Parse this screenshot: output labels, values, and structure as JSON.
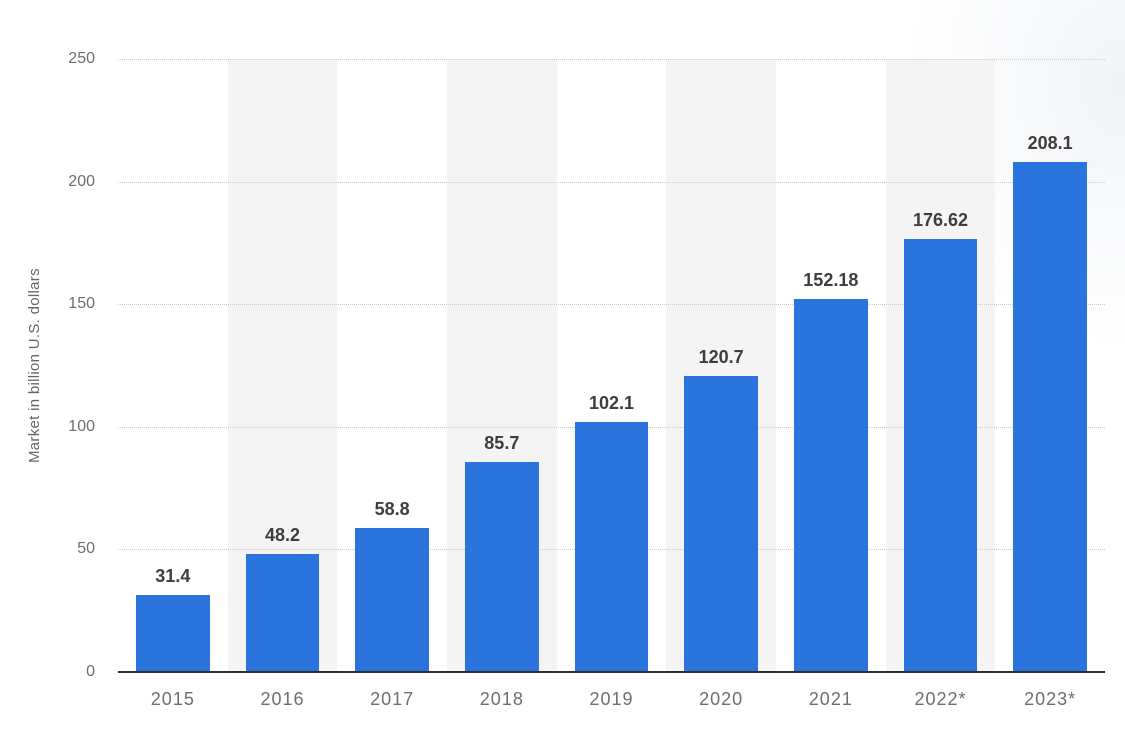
{
  "chart_data": {
    "type": "bar",
    "categories": [
      "2015",
      "2016",
      "2017",
      "2018",
      "2019",
      "2020",
      "2021",
      "2022*",
      "2023*"
    ],
    "values": [
      31.4,
      48.2,
      58.8,
      85.7,
      102.1,
      120.7,
      152.18,
      176.62,
      208.1
    ],
    "value_labels": [
      "31.4",
      "48.2",
      "58.8",
      "85.7",
      "102.1",
      "120.7",
      "152.18",
      "176.62",
      "208.1"
    ],
    "title": "",
    "xlabel": "",
    "ylabel": "Market in billion U.S. dollars",
    "ylim": [
      0,
      250
    ],
    "yticks": [
      0,
      50,
      100,
      150,
      200,
      250
    ],
    "ytick_labels": [
      "0",
      "50",
      "100",
      "150",
      "200",
      "250"
    ],
    "grid": "horizontal-dotted",
    "legend_position": "none",
    "background_stripes": "alternating columns, even categories shaded",
    "colors": {
      "bar": "#2b73dd",
      "stripe": "#f4f4f5",
      "gridline": "#c9c9c9",
      "axis_line": "#2f2f2f",
      "tick_label": "#6e6e6e",
      "value_label": "#3d3d3d",
      "axis_title": "#666666",
      "background": "#ffffff"
    }
  }
}
